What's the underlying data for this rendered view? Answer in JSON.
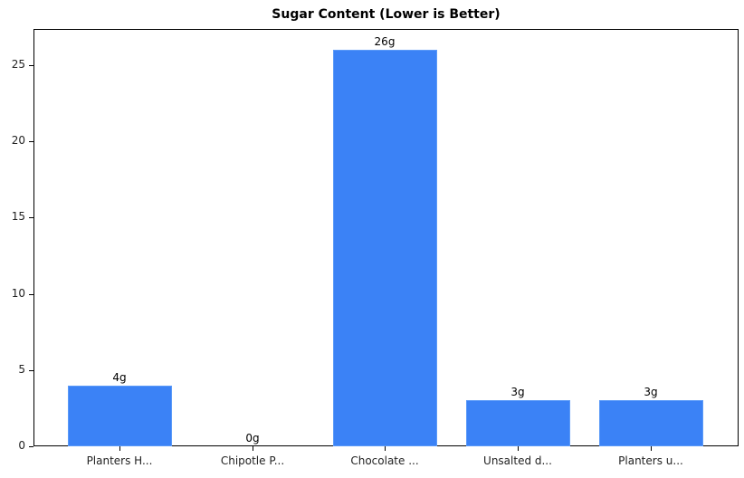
{
  "chart_data": {
    "type": "bar",
    "title": "Sugar Content (Lower is Better)",
    "categories": [
      "Planters H...",
      "Chipotle P...",
      "Chocolate ...",
      "Unsalted d...",
      "Planters u..."
    ],
    "values": [
      4,
      0,
      26,
      3,
      3
    ],
    "value_labels": [
      "4g",
      "0g",
      "26g",
      "3g",
      "3g"
    ],
    "xlabel": "",
    "ylabel": "",
    "ylim": [
      0,
      27.3
    ],
    "yticks": [
      0,
      5,
      10,
      15,
      20,
      25
    ],
    "grid": false,
    "legend": null,
    "bar_color": "#3b82f6"
  }
}
